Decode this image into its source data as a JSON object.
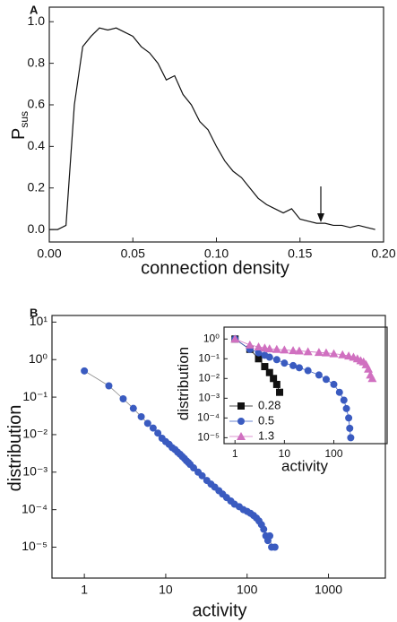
{
  "chart_data": [
    {
      "type": "line",
      "label": "A",
      "xlabel": "connection density",
      "ylabel": "P",
      "ylabel_subscript": "sus",
      "xlim": [
        0,
        0.2
      ],
      "ylim": [
        -0.06,
        1.07
      ],
      "xticks": [
        {
          "value": 0,
          "label": "0.00"
        },
        {
          "value": 0.05,
          "label": "0.05"
        },
        {
          "value": 0.1,
          "label": "0.10"
        },
        {
          "value": 0.15,
          "label": "0.15"
        },
        {
          "value": 0.2,
          "label": "0.20"
        }
      ],
      "yticks": [
        {
          "value": 0,
          "label": "0.0"
        },
        {
          "value": 0.2,
          "label": "0.2"
        },
        {
          "value": 0.4,
          "label": "0.4"
        },
        {
          "value": 0.6,
          "label": "0.6"
        },
        {
          "value": 0.8,
          "label": "0.8"
        },
        {
          "value": 1,
          "label": "1.0"
        }
      ],
      "series": [
        {
          "color": "#111111",
          "x": [
            0,
            0.005,
            0.01,
            0.015,
            0.02,
            0.025,
            0.03,
            0.035,
            0.04,
            0.045,
            0.05,
            0.055,
            0.06,
            0.065,
            0.07,
            0.075,
            0.08,
            0.085,
            0.09,
            0.095,
            0.1,
            0.105,
            0.11,
            0.115,
            0.12,
            0.125,
            0.13,
            0.135,
            0.14,
            0.145,
            0.15,
            0.155,
            0.16,
            0.165,
            0.17,
            0.175,
            0.18,
            0.185,
            0.19,
            0.195
          ],
          "values": [
            0,
            0,
            0.02,
            0.6,
            0.88,
            0.93,
            0.97,
            0.96,
            0.97,
            0.95,
            0.93,
            0.88,
            0.85,
            0.8,
            0.72,
            0.74,
            0.65,
            0.6,
            0.52,
            0.48,
            0.4,
            0.33,
            0.28,
            0.25,
            0.2,
            0.15,
            0.12,
            0.1,
            0.08,
            0.1,
            0.05,
            0.04,
            0.03,
            0.03,
            0.02,
            0.02,
            0.01,
            0.02,
            0.01,
            0
          ]
        }
      ]
    },
    {
      "type": "line",
      "label": "B",
      "xlabel": "activity",
      "ylabel": "distribution",
      "xscale": "log",
      "yscale": "log",
      "xlim": [
        0.4,
        5000
      ],
      "ylim": [
        1.5e-06,
        15
      ],
      "xticks": [
        1,
        10,
        100,
        1000
      ],
      "yticks": [
        {
          "value": 10,
          "label": "10¹"
        },
        {
          "value": 1,
          "label": "10⁰"
        },
        {
          "value": 0.1,
          "label": "10⁻¹"
        },
        {
          "value": 0.01,
          "label": "10⁻²"
        },
        {
          "value": 0.001,
          "label": "10⁻³"
        },
        {
          "value": 0.0001,
          "label": "10⁻⁴"
        },
        {
          "value": 1e-05,
          "label": "10⁻⁵"
        }
      ],
      "series": [
        {
          "color": "#3a5bc0",
          "line_color": "#888888",
          "marker": "circle",
          "x": [
            1,
            2,
            3,
            4,
            5,
            6,
            7,
            8,
            9,
            10,
            11,
            12,
            13,
            14,
            15,
            16,
            17,
            18,
            19,
            20,
            22,
            25,
            28,
            32,
            36,
            40,
            45,
            50,
            56,
            63,
            70,
            80,
            90,
            100,
            110,
            120,
            130,
            140,
            150,
            160,
            170,
            180,
            190,
            200,
            220
          ],
          "values": [
            0.5,
            0.2,
            0.09,
            0.05,
            0.03,
            0.02,
            0.015,
            0.011,
            0.008,
            0.0065,
            0.0055,
            0.0045,
            0.004,
            0.0034,
            0.003,
            0.0026,
            0.0023,
            0.002,
            0.0018,
            0.0016,
            0.0013,
            0.001,
            0.0008,
            0.0006,
            0.00048,
            0.0004,
            0.00032,
            0.00026,
            0.00021,
            0.00017,
            0.00014,
            0.00012,
            0.0001,
            9e-05,
            8e-05,
            7e-05,
            6e-05,
            5e-05,
            4e-05,
            3e-05,
            2e-05,
            1.5e-05,
            2e-05,
            1e-05,
            1e-05
          ]
        }
      ]
    },
    {
      "type": "line",
      "xlabel": "activity",
      "ylabel": "distribution",
      "xscale": "log",
      "yscale": "log",
      "legend": "lower left",
      "xlim": [
        0.6,
        1200
      ],
      "ylim": [
        5e-06,
        4
      ],
      "xticks": [
        1,
        10,
        100
      ],
      "yticks": [
        {
          "value": 1,
          "label": "10⁰"
        },
        {
          "value": 0.1,
          "label": "10⁻¹"
        },
        {
          "value": 0.01,
          "label": "10⁻²"
        },
        {
          "value": 0.001,
          "label": "10⁻³"
        },
        {
          "value": 0.0001,
          "label": "10⁻⁴"
        },
        {
          "value": 1e-05,
          "label": "10⁻⁵"
        }
      ],
      "series": [
        {
          "name": "0.28",
          "color": "#111111",
          "marker": "square",
          "x": [
            1,
            2,
            3,
            4,
            5,
            6,
            7,
            8
          ],
          "values": [
            1,
            0.3,
            0.1,
            0.04,
            0.02,
            0.01,
            0.005,
            0.002
          ]
        },
        {
          "name": "0.5",
          "color": "#3a5bc0",
          "marker": "circle",
          "x": [
            1,
            2,
            3,
            4,
            5,
            7,
            10,
            15,
            20,
            30,
            50,
            70,
            100,
            130,
            160,
            180,
            200,
            210,
            220
          ],
          "values": [
            1,
            0.3,
            0.2,
            0.15,
            0.12,
            0.09,
            0.06,
            0.045,
            0.035,
            0.025,
            0.015,
            0.009,
            0.005,
            0.002,
            0.0008,
            0.0003,
            0.0001,
            3e-05,
            1e-05
          ]
        },
        {
          "name": "1.3",
          "color": "#d070c0",
          "marker": "triangle",
          "x": [
            1,
            2,
            3,
            4,
            5,
            7,
            10,
            15,
            20,
            30,
            50,
            70,
            100,
            150,
            200,
            250,
            300,
            350,
            400,
            450,
            500,
            550,
            600
          ],
          "values": [
            1,
            0.5,
            0.4,
            0.35,
            0.32,
            0.3,
            0.28,
            0.26,
            0.25,
            0.23,
            0.21,
            0.2,
            0.18,
            0.16,
            0.14,
            0.12,
            0.1,
            0.08,
            0.07,
            0.05,
            0.03,
            0.015,
            0.01
          ]
        }
      ]
    }
  ]
}
